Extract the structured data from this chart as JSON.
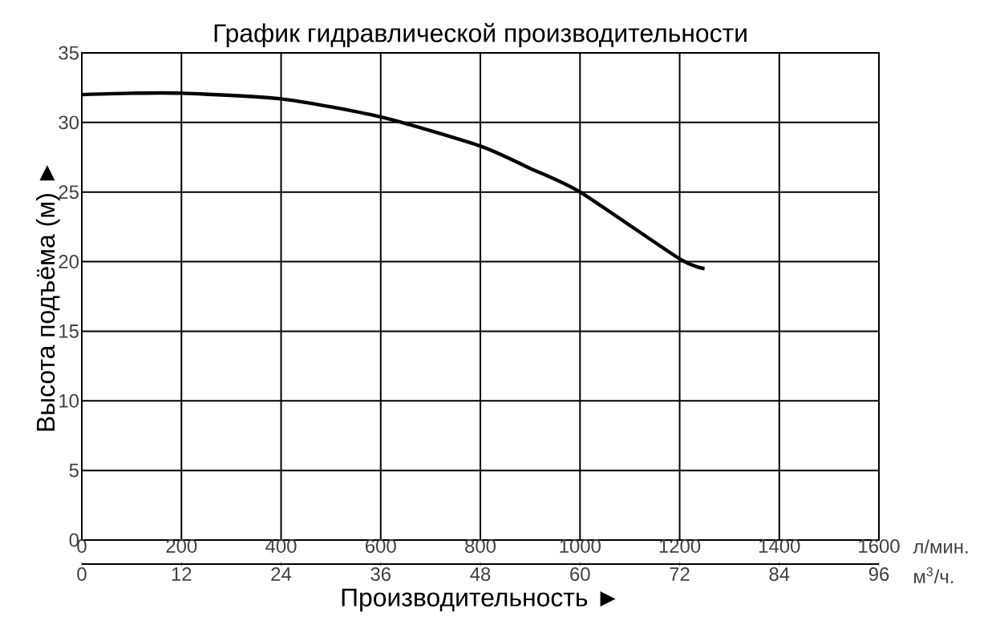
{
  "chart_data": {
    "type": "line",
    "title": "График гидравлической производительности",
    "xlabel": "Производительность ►",
    "ylabel": "Высота подъёма (м) ►",
    "x": [
      0,
      100,
      200,
      400,
      600,
      800,
      900,
      1000,
      1200,
      1250
    ],
    "values": [
      32.0,
      32.1,
      32.1,
      31.7,
      30.4,
      28.3,
      26.7,
      25.0,
      20.2,
      19.5
    ],
    "color": "#000000",
    "xlim": [
      0,
      1600
    ],
    "xticks": [
      0,
      200,
      400,
      600,
      800,
      1000,
      1200,
      1400,
      1600
    ],
    "x2lim": [
      0,
      96
    ],
    "x2ticks": [
      0,
      12,
      24,
      36,
      48,
      60,
      72,
      84,
      96
    ],
    "ylim": [
      0,
      35
    ],
    "yticks": [
      0,
      5,
      10,
      15,
      20,
      25,
      30,
      35
    ],
    "grid": true,
    "annotations": [
      "л/мин.",
      "м$^{3}$/ч."
    ]
  }
}
